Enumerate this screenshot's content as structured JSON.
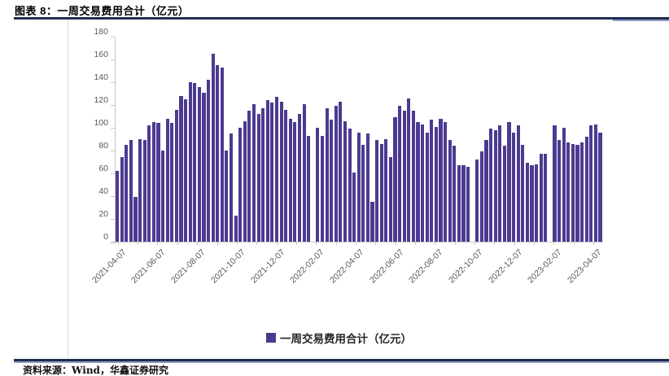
{
  "header": {
    "title": "图表 8：一周交易费用合计（亿元）"
  },
  "footer": {
    "source": "资料来源：Wind，华鑫证券研究"
  },
  "colors": {
    "bar": "#4c3a91",
    "header_rule": "#1f2e4f",
    "light_rule": "#8f9bc2",
    "axis_line": "#c9c9c9",
    "axis_text": "#595959"
  },
  "chart_data": {
    "type": "bar",
    "title": "一周交易费用合计（亿元）",
    "legend": "一周交易费用合计（亿元）",
    "legend_position": "bottom",
    "bar_color": "#4c3a91",
    "grid": false,
    "ylim": [
      0,
      180
    ],
    "yticks": [
      0,
      20,
      40,
      60,
      80,
      100,
      120,
      140,
      160,
      180
    ],
    "x_unit": "week",
    "x_tick_labels": [
      "2021-04-07",
      "2021-06-07",
      "2021-08-07",
      "2021-10-07",
      "2021-12-07",
      "2022-02-07",
      "2022-04-07",
      "2022-06-07",
      "2022-08-07",
      "2022-10-07",
      "2022-12-07",
      "2023-02-07",
      "2023-04-07"
    ],
    "values": [
      62,
      74,
      85,
      89,
      39,
      90,
      89,
      102,
      105,
      104,
      80,
      108,
      104,
      116,
      128,
      125,
      140,
      139,
      136,
      131,
      142,
      165,
      155,
      153,
      80,
      95,
      23,
      100,
      106,
      115,
      121,
      112,
      117,
      124,
      122,
      127,
      123,
      116,
      108,
      105,
      112,
      121,
      93,
      0,
      100,
      93,
      117,
      107,
      119,
      123,
      106,
      99,
      61,
      96,
      85,
      95,
      35,
      89,
      86,
      90,
      74,
      109,
      119,
      115,
      126,
      115,
      105,
      103,
      96,
      107,
      101,
      108,
      105,
      89,
      84,
      67,
      67,
      66,
      0,
      72,
      79,
      89,
      99,
      98,
      102,
      84,
      105,
      96,
      102,
      85,
      69,
      67,
      68,
      77,
      77,
      0,
      102,
      89,
      100,
      87,
      86,
      85,
      87,
      92,
      102,
      103,
      96
    ]
  }
}
